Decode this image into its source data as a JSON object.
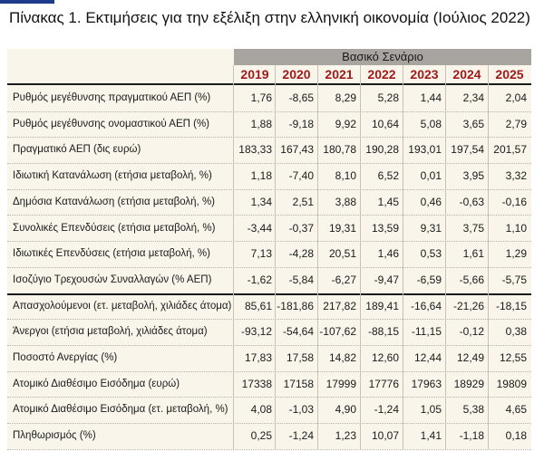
{
  "title": "Πίνακας 1. Εκτιμήσεις για την εξέλιξη στην ελληνική οικονομία (Ιούλιος 2022)",
  "scenario_header": "Βασικό Σενάριο",
  "years": [
    "2019",
    "2020",
    "2021",
    "2022",
    "2023",
    "2024",
    "2025"
  ],
  "rows": [
    {
      "label": "Ρυθμός μεγέθυνσης πραγματικού ΑΕΠ  (%)",
      "values": [
        "1,76",
        "-8,65",
        "8,29",
        "5,28",
        "1,44",
        "2,34",
        "2,04"
      ]
    },
    {
      "label": "Ρυθμός μεγέθυνσης ονομαστικού ΑΕΠ  (%)",
      "values": [
        "1,88",
        "-9,18",
        "9,92",
        "10,64",
        "5,08",
        "3,65",
        "2,79"
      ]
    },
    {
      "label": "Πραγματικό ΑΕΠ (δις ευρώ)",
      "values": [
        "183,33",
        "167,43",
        "180,78",
        "190,28",
        "193,01",
        "197,54",
        "201,57"
      ]
    },
    {
      "label": "Ιδιωτική Κατανάλωση (ετήσια μεταβολή, %)",
      "values": [
        "1,18",
        "-7,40",
        "8,10",
        "6,52",
        "0,01",
        "3,95",
        "3,32"
      ]
    },
    {
      "label": "Δημόσια Κατανάλωση (ετήσια μεταβολή, %)",
      "values": [
        "1,34",
        "2,51",
        "3,88",
        "1,45",
        "0,46",
        "-0,63",
        "-0,16"
      ]
    },
    {
      "label": "Συνολικές Επενδύσεις (ετήσια μεταβολή, %)",
      "values": [
        "-3,44",
        "-0,37",
        "19,31",
        "13,59",
        "9,31",
        "3,75",
        "1,10"
      ]
    },
    {
      "label": "Ιδιωτικές Επενδύσεις (ετήσια μεταβολή, %)",
      "values": [
        "7,13",
        "-4,28",
        "20,51",
        "1,46",
        "0,53",
        "1,61",
        "1,29"
      ]
    },
    {
      "label": "Ισοζύγιο Τρεχουσών Συναλλαγών (% ΑΕΠ)",
      "values": [
        "-1,62",
        "-5,84",
        "-6,27",
        "-9,47",
        "-6,59",
        "-5,66",
        "-5,75"
      ]
    },
    {
      "label": "Απασχολούμενοι (ετ. μεταβολή, χιλιάδες άτομα)",
      "values": [
        "85,61",
        "-181,86",
        "217,82",
        "189,41",
        "-16,64",
        "-21,26",
        "-18,15"
      ]
    },
    {
      "label": "Άνεργοι (ετήσια μεταβολή, χιλιάδες άτομα)",
      "values": [
        "-93,12",
        "-54,64",
        "-107,62",
        "-88,15",
        "-11,15",
        "-0,12",
        "0,38"
      ]
    },
    {
      "label": "Ποσοστό Ανεργίας (%)",
      "values": [
        "17,83",
        "17,58",
        "14,82",
        "12,60",
        "12,44",
        "12,49",
        "12,55"
      ]
    },
    {
      "label": "Ατομικό Διαθέσιμο Εισόδημα (ευρώ)",
      "values": [
        "17338",
        "17158",
        "17999",
        "17776",
        "17963",
        "18929",
        "19809"
      ]
    },
    {
      "label": "Ατομικό Διαθέσιμο Εισόδημα (ετ. μεταβολή, %)",
      "values": [
        "4,08",
        "-1,03",
        "4,90",
        "-1,24",
        "1,05",
        "5,38",
        "4,65"
      ]
    },
    {
      "label": "Πληθωρισμός (%)",
      "values": [
        "0,25",
        "-1,24",
        "1,23",
        "10,07",
        "1,41",
        "-1,18",
        "0,18"
      ]
    }
  ],
  "colors": {
    "year_text": "#a11a1a",
    "header_bg": "#a8a4a0",
    "table_bg": "#faf5ea"
  }
}
